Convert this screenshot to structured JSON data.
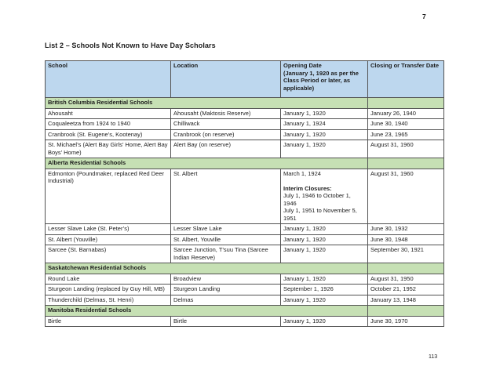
{
  "page": {
    "top_page_number": "7",
    "bottom_page_number": "113",
    "title": "List 2 – Schools Not Known to Have Day Scholars"
  },
  "table": {
    "columns": {
      "school": "School",
      "location": "Location",
      "opening_line1": "Opening Date",
      "opening_line2": "(January 1, 1920 as per the Class Period or later, as applicable)",
      "closing": "Closing or Transfer Date"
    },
    "sections": [
      {
        "title": "British Columbia Residential Schools",
        "rows": [
          {
            "school": "Ahousaht",
            "location": "Ahousaht (Maktosis Reserve)",
            "opening": "January 1, 1920",
            "closing": "January 26, 1940"
          },
          {
            "school": "Coqualeetza from 1924 to 1940",
            "location": "Chilliwack",
            "opening": "January 1, 1924",
            "closing": "June 30, 1940"
          },
          {
            "school": "Cranbrook (St. Eugene’s, Kootenay)",
            "location": "Cranbrook (on reserve)",
            "opening": "January 1, 1920",
            "closing": "June 23, 1965"
          },
          {
            "school": "St. Michael’s (Alert Bay Girls’ Home, Alert Bay Boys’ Home)",
            "location": "Alert Bay (on reserve)",
            "opening": "January 1, 1920",
            "closing": "August 31, 1960"
          }
        ]
      },
      {
        "title": "Alberta Residential Schools",
        "rows": [
          {
            "school": "Edmonton (Poundmaker, replaced Red Deer Industrial)",
            "location": "St. Albert",
            "opening": {
              "main": "March 1, 1924",
              "interim_label": "Interim Closures:",
              "interim_lines": [
                "July 1, 1946 to October 1, 1946",
                "July 1, 1951 to November 5, 1951"
              ]
            },
            "closing": "August 31, 1960"
          },
          {
            "school": "Lesser Slave Lake (St. Peter’s)",
            "location": "Lesser Slave Lake",
            "opening": "January 1, 1920",
            "closing": "June 30, 1932"
          },
          {
            "school": "St. Albert (Youville)",
            "location": "St. Albert, Youville",
            "opening": "January 1, 1920",
            "closing": "June 30, 1948"
          },
          {
            "school": "Sarcee (St. Barnabas)",
            "location": "Sarcee Junction, T’suu Tina (Sarcee Indian Reserve)",
            "opening": "January 1, 1920",
            "closing": "September 30, 1921"
          }
        ]
      },
      {
        "title": "Saskatchewan Residential Schools",
        "rows": [
          {
            "school": "Round Lake",
            "location": "Broadview",
            "opening": "January 1, 1920",
            "closing": "August 31, 1950"
          },
          {
            "school": "Sturgeon Landing (replaced by Guy Hill, MB)",
            "location": "Sturgeon Landing",
            "opening": "September 1, 1926",
            "closing": "October 21, 1952"
          },
          {
            "school": "Thunderchild (Delmas, St. Henri)",
            "location": "Delmas",
            "opening": "January 1, 1920",
            "closing": "January 13, 1948"
          }
        ]
      },
      {
        "title": "Manitoba Residential Schools",
        "rows": [
          {
            "school": "Birtle",
            "location": "Birtle",
            "opening": "January 1, 1920",
            "closing": "June 30, 1970"
          }
        ]
      }
    ],
    "colors": {
      "header_bg": "#bdd7ee",
      "section_bg": "#c6e0b4",
      "border": "#525252"
    }
  }
}
